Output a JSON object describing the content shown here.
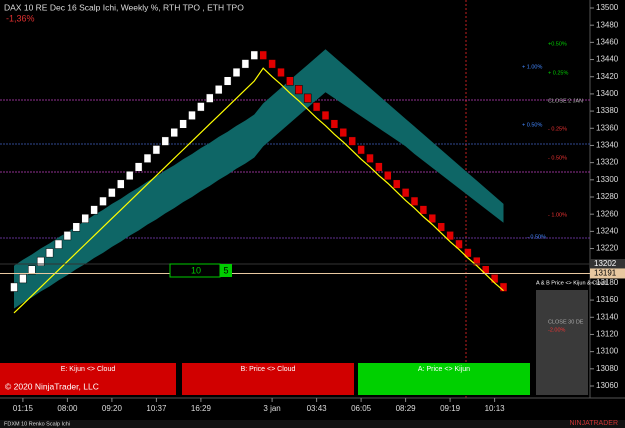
{
  "chart_data": {
    "type": "renko",
    "title": "DAX 10 RE Dec 16 Scalp Ichi, Weekly %, RTH TPO , ETH TPO",
    "subtitle": "-1,36%",
    "start": 13170,
    "up_color": "#ffffff",
    "down_color": "#e00000",
    "values": [
      13180,
      13190,
      13200,
      13210,
      13220,
      13230,
      13240,
      13250,
      13260,
      13270,
      13280,
      13290,
      13300,
      13310,
      13320,
      13330,
      13340,
      13350,
      13360,
      13370,
      13380,
      13390,
      13400,
      13410,
      13420,
      13430,
      13440,
      13450,
      13440,
      13430,
      13420,
      13410,
      13400,
      13390,
      13380,
      13370,
      13360,
      13350,
      13340,
      13330,
      13320,
      13310,
      13300,
      13290,
      13280,
      13270,
      13260,
      13250,
      13240,
      13230,
      13220,
      13210,
      13200,
      13190,
      13180,
      13170
    ],
    "series": [
      {
        "color": "#ffff00",
        "values": [
          13145,
          13155,
          13165,
          13175,
          13185,
          13195,
          13205,
          13215,
          13225,
          13235,
          13245,
          13255,
          13265,
          13275,
          13285,
          13295,
          13305,
          13315,
          13325,
          13335,
          13345,
          13355,
          13365,
          13375,
          13385,
          13395,
          13405,
          13415,
          13430,
          13420,
          13411,
          13401,
          13392,
          13382,
          13372,
          13363,
          13353,
          13344,
          13334,
          13324,
          13315,
          13305,
          13296,
          13286,
          13276,
          13267,
          13257,
          13248,
          13238,
          13228,
          13219,
          13209,
          13200,
          13190,
          13180,
          13171
        ]
      }
    ],
    "cloud": {
      "color": "#0e6666",
      "upper": [
        13200,
        13207,
        13213,
        13220,
        13226,
        13233,
        13239,
        13246,
        13252,
        13259,
        13265,
        13272,
        13278,
        13285,
        13291,
        13298,
        13304,
        13311,
        13317,
        13324,
        13330,
        13337,
        13343,
        13350,
        13356,
        13363,
        13369,
        13376,
        13389,
        13398,
        13407,
        13416,
        13425,
        13434,
        13443,
        13452,
        13443,
        13434,
        13425,
        13416,
        13407,
        13398,
        13389,
        13380,
        13371,
        13362,
        13353,
        13344,
        13335,
        13326,
        13317,
        13308,
        13299,
        13290,
        13281,
        13272
      ],
      "lower": [
        13150,
        13157,
        13163,
        13170,
        13176,
        13183,
        13189,
        13196,
        13202,
        13209,
        13215,
        13222,
        13228,
        13235,
        13241,
        13248,
        13254,
        13261,
        13267,
        13274,
        13280,
        13287,
        13293,
        13300,
        13306,
        13313,
        13319,
        13326,
        13339,
        13348,
        13357,
        13366,
        13375,
        13384,
        13393,
        13402,
        13395,
        13388,
        13381,
        13374,
        13367,
        13360,
        13353,
        13346,
        13339,
        13330,
        13322,
        13314,
        13306,
        13298,
        13290,
        13282,
        13274,
        13266,
        13258,
        13250
      ]
    },
    "ylim": [
      13060,
      13500
    ],
    "yticks": [
      13060,
      13080,
      13100,
      13120,
      13140,
      13160,
      13180,
      13200,
      13220,
      13240,
      13260,
      13280,
      13300,
      13320,
      13340,
      13360,
      13380,
      13400,
      13420,
      13440,
      13460,
      13480,
      13500
    ],
    "xticks": [
      {
        "value": 1,
        "label": "01:15"
      },
      {
        "value": 6,
        "label": "08:00"
      },
      {
        "value": 11,
        "label": "09:20"
      },
      {
        "value": 16,
        "label": "10:37"
      },
      {
        "value": 21,
        "label": "16:29"
      },
      {
        "value": 29,
        "label": "3 jan"
      },
      {
        "value": 34,
        "label": "03:43"
      },
      {
        "value": 39,
        "label": "06:05"
      },
      {
        "value": 44,
        "label": "08:29"
      },
      {
        "value": 49,
        "label": "09:19"
      },
      {
        "value": 54,
        "label": "10:13"
      }
    ],
    "price_markers": [
      {
        "value": 13202,
        "color": "#333333"
      },
      {
        "value": 13191,
        "color": "#e8c8a0"
      }
    ],
    "level_labels": [
      "+0.50%",
      "+ 1.00%",
      "+ 0.25%",
      "CLOSE 2 JAN",
      "+ 0.50%",
      "- 0.25%",
      "- 0.50%",
      "- 1.00%",
      "- 0.50%",
      "A & B Price <> Kijun & Cloud",
      "CLOSE 30 DE",
      "-2.00%"
    ]
  },
  "buttons": [
    "E: Kijun <> Cloud",
    "B: Price <> Cloud",
    "A: Price <> Kijun"
  ],
  "order_box": {
    "quantity": "10",
    "step": "5"
  },
  "copyright": "© 2020 NinjaTrader, LLC",
  "footer": {
    "tab": "FDXM 10 Renko Scalp Ichi",
    "brand": "NINJATRADER"
  }
}
